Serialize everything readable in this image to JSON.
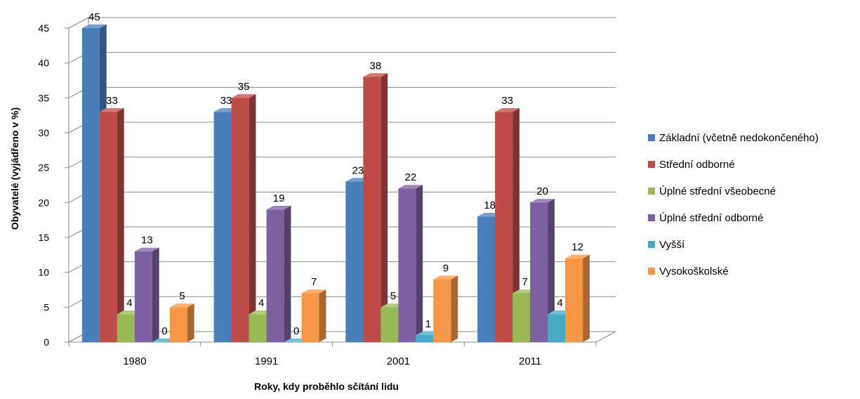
{
  "chart_data": {
    "type": "bar",
    "title": "",
    "xlabel": "Roky, kdy proběhlo sčítání lidu",
    "ylabel": "Obyvatelé (vyjádřeno v %)",
    "ylim": [
      0,
      45
    ],
    "yticks": [
      0,
      5,
      10,
      15,
      20,
      25,
      30,
      35,
      40,
      45
    ],
    "grid": true,
    "legend_position": "right",
    "categories": [
      "1980",
      "1991",
      "2001",
      "2011"
    ],
    "series": [
      {
        "name": "Základní (včetně nedokončeného)",
        "color": "#4A7EBB",
        "values": [
          45,
          33,
          23,
          18
        ],
        "value_labels": [
          "45",
          "33",
          "23",
          "18"
        ]
      },
      {
        "name": "Střední odborné",
        "color": "#BE4B48",
        "values": [
          33,
          35,
          38,
          33
        ],
        "value_labels": [
          "33",
          "35",
          "38",
          "33"
        ]
      },
      {
        "name": "Úplné střední všeobecné",
        "color": "#98B954",
        "values": [
          4,
          4,
          5,
          7
        ],
        "value_labels": [
          "4",
          "4",
          "5",
          "7"
        ]
      },
      {
        "name": "Úplné střední odborné",
        "color": "#7D60A0",
        "values": [
          13,
          19,
          22,
          20
        ],
        "value_labels": [
          "13",
          "19",
          "22",
          "20"
        ]
      },
      {
        "name": "Vyšší",
        "color": "#46AAC5",
        "values": [
          0,
          0,
          1,
          4
        ],
        "value_labels": [
          "0",
          "0",
          "1",
          "4"
        ]
      },
      {
        "name": "Vysokoškolské",
        "color": "#F79646",
        "values": [
          5,
          7,
          9,
          12
        ],
        "value_labels": [
          "5",
          "7",
          "9",
          "12"
        ]
      }
    ]
  }
}
